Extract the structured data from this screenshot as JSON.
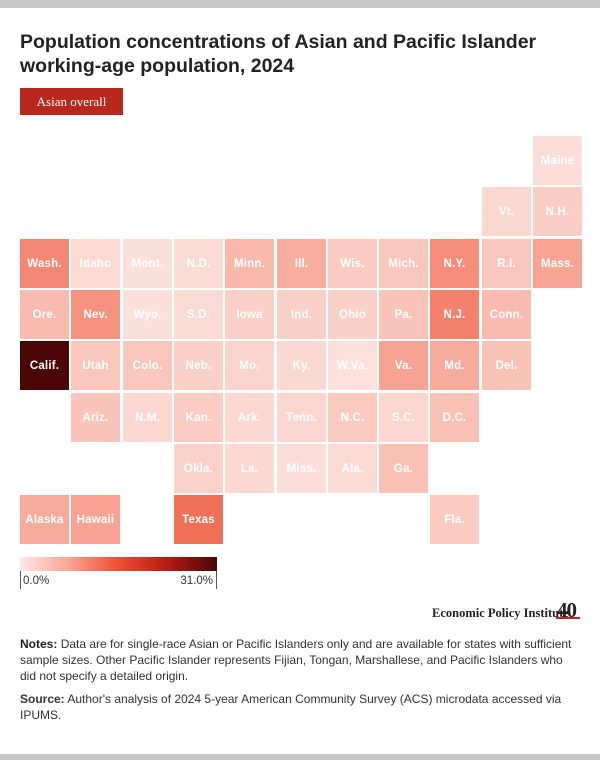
{
  "title": "Population concentrations of Asian and Pacific Islander working-age population, 2024",
  "filter_button": "Asian overall",
  "legend": {
    "min_label": "0.0%",
    "max_label": "31.0%"
  },
  "colors": {
    "low": "#fce8e4",
    "mid": "#ee4e32",
    "high": "#4a0606",
    "button": "#b8281c"
  },
  "branding": {
    "org": "Economic Policy Institute",
    "anniversary": "40"
  },
  "notes": {
    "label": "Notes:",
    "text": "Data are for single-race Asian or Pacific Islanders only and are available for states with sufficient sample sizes. Other Pacific Islander represents Fijian, Tongan, Marshallese, and Pacific Islanders who did not specify a detailed origin."
  },
  "source": {
    "label": "Source:",
    "text": "Author's analysis of 2024 5-year American Community Survey (ACS) microdata accessed via IPUMS."
  },
  "chart_data": {
    "type": "heatmap",
    "subtype": "state tile grid map",
    "title": "Population concentrations of Asian and Pacific Islander working-age population, 2024",
    "scale": {
      "min": 0.0,
      "max": 31.0,
      "unit": "%"
    },
    "states": [
      {
        "label": "Maine",
        "row": 0,
        "col": 10,
        "value": 1.3
      },
      {
        "label": "Vt.",
        "row": 1,
        "col": 9,
        "value": 1.9
      },
      {
        "label": "N.H.",
        "row": 1,
        "col": 10,
        "value": 3.0
      },
      {
        "label": "Wash.",
        "row": 2,
        "col": 0,
        "value": 10.3
      },
      {
        "label": "Idaho",
        "row": 2,
        "col": 1,
        "value": 1.6
      },
      {
        "label": "Mont.",
        "row": 2,
        "col": 2,
        "value": 1.0
      },
      {
        "label": "N.D.",
        "row": 2,
        "col": 3,
        "value": 1.5
      },
      {
        "label": "Minn.",
        "row": 2,
        "col": 4,
        "value": 5.6
      },
      {
        "label": "Ill.",
        "row": 2,
        "col": 5,
        "value": 6.8
      },
      {
        "label": "Wis.",
        "row": 2,
        "col": 6,
        "value": 3.3
      },
      {
        "label": "Mich.",
        "row": 2,
        "col": 7,
        "value": 3.9
      },
      {
        "label": "N.Y.",
        "row": 2,
        "col": 8,
        "value": 9.8
      },
      {
        "label": "R.I.",
        "row": 2,
        "col": 9,
        "value": 3.9
      },
      {
        "label": "Mass.",
        "row": 2,
        "col": 10,
        "value": 7.8
      },
      {
        "label": "Ore.",
        "row": 3,
        "col": 0,
        "value": 5.2
      },
      {
        "label": "Nev.",
        "row": 3,
        "col": 1,
        "value": 9.4
      },
      {
        "label": "Wyo.",
        "row": 3,
        "col": 2,
        "value": 1.0
      },
      {
        "label": "S.D.",
        "row": 3,
        "col": 3,
        "value": 1.5
      },
      {
        "label": "Iowa",
        "row": 3,
        "col": 4,
        "value": 2.8
      },
      {
        "label": "Ind.",
        "row": 3,
        "col": 5,
        "value": 2.7
      },
      {
        "label": "Ohio",
        "row": 3,
        "col": 6,
        "value": 2.7
      },
      {
        "label": "Pa.",
        "row": 3,
        "col": 7,
        "value": 4.2
      },
      {
        "label": "N.J.",
        "row": 3,
        "col": 8,
        "value": 10.9
      },
      {
        "label": "Conn.",
        "row": 3,
        "col": 9,
        "value": 5.2
      },
      {
        "label": "Calif.",
        "row": 4,
        "col": 0,
        "value": 31.0
      },
      {
        "label": "Utah",
        "row": 4,
        "col": 1,
        "value": 3.9
      },
      {
        "label": "Colo.",
        "row": 4,
        "col": 2,
        "value": 3.9
      },
      {
        "label": "Neb.",
        "row": 4,
        "col": 3,
        "value": 2.8
      },
      {
        "label": "Mo.",
        "row": 4,
        "col": 4,
        "value": 2.3
      },
      {
        "label": "Ky.",
        "row": 4,
        "col": 5,
        "value": 1.7
      },
      {
        "label": "W.Va.",
        "row": 4,
        "col": 6,
        "value": 0.9
      },
      {
        "label": "Va.",
        "row": 4,
        "col": 7,
        "value": 7.9
      },
      {
        "label": "Md.",
        "row": 4,
        "col": 8,
        "value": 7.0
      },
      {
        "label": "Del.",
        "row": 4,
        "col": 9,
        "value": 4.4
      },
      {
        "label": "Ariz.",
        "row": 5,
        "col": 1,
        "value": 4.2
      },
      {
        "label": "N.M.",
        "row": 5,
        "col": 2,
        "value": 1.9
      },
      {
        "label": "Kan.",
        "row": 5,
        "col": 3,
        "value": 3.2
      },
      {
        "label": "Ark.",
        "row": 5,
        "col": 4,
        "value": 1.9
      },
      {
        "label": "Tenn.",
        "row": 5,
        "col": 5,
        "value": 2.0
      },
      {
        "label": "N.C.",
        "row": 5,
        "col": 6,
        "value": 3.5
      },
      {
        "label": "S.C.",
        "row": 5,
        "col": 7,
        "value": 2.0
      },
      {
        "label": "D.C.",
        "row": 5,
        "col": 8,
        "value": 4.6
      },
      {
        "label": "Okla.",
        "row": 6,
        "col": 3,
        "value": 2.6
      },
      {
        "label": "La.",
        "row": 6,
        "col": 4,
        "value": 1.8
      },
      {
        "label": "Miss.",
        "row": 6,
        "col": 5,
        "value": 1.1
      },
      {
        "label": "Ala.",
        "row": 6,
        "col": 6,
        "value": 1.5
      },
      {
        "label": "Ga.",
        "row": 6,
        "col": 7,
        "value": 4.6
      },
      {
        "label": "Alaska",
        "row": 7,
        "col": 0,
        "value": 7.0
      },
      {
        "label": "Hawaii",
        "row": 7,
        "col": 1,
        "value": 8.0
      },
      {
        "label": "Texas",
        "row": 7,
        "col": 3,
        "value": 12.5
      },
      {
        "label": "Fla.",
        "row": 7,
        "col": 8,
        "value": 3.4
      }
    ]
  }
}
